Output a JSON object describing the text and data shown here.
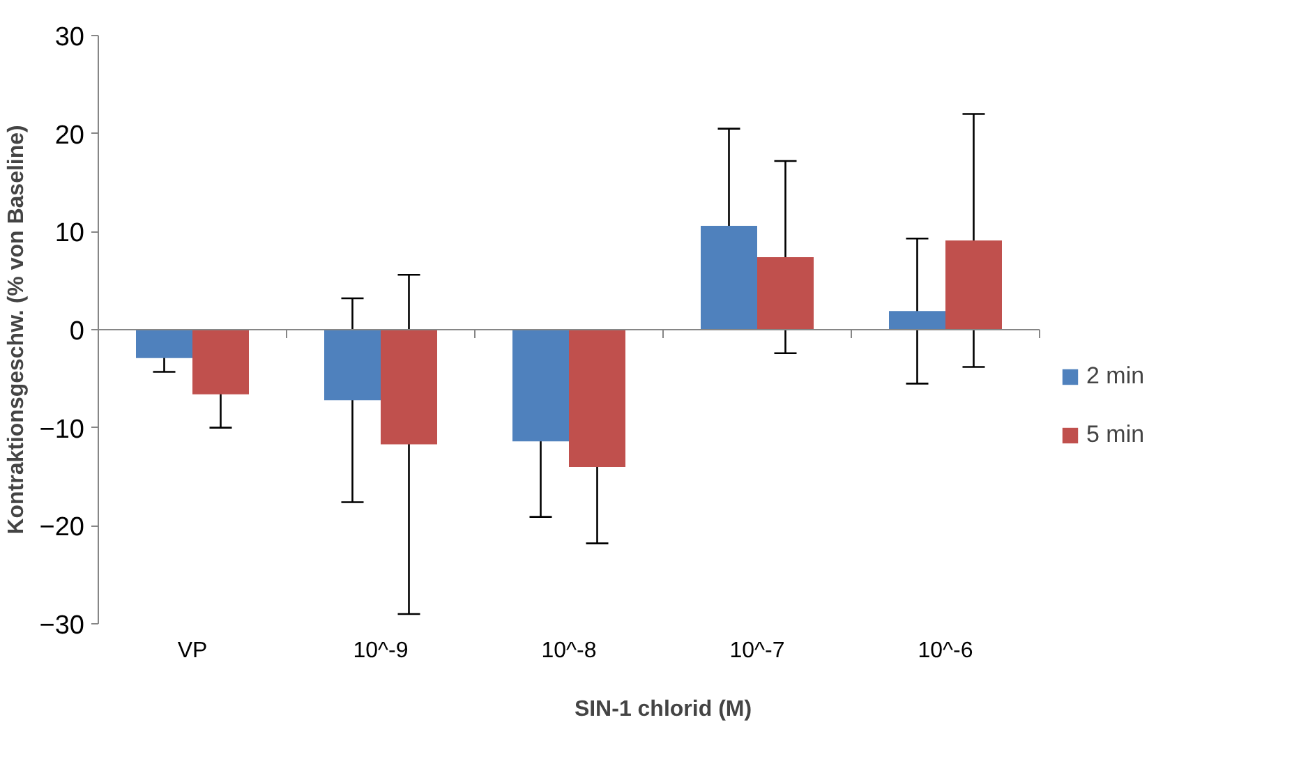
{
  "chart_data": {
    "type": "bar",
    "xlabel": "SIN-1 chlorid (M)",
    "ylabel": "Kontraktionsgeschw. (% von Baseline)",
    "categories": [
      "VP",
      "10^-9",
      "10^-8",
      "10^-7",
      "10^-6"
    ],
    "series": [
      {
        "name": "2 min",
        "color": "#4f81bd",
        "values": [
          -2.9,
          -7.2,
          -11.4,
          10.6,
          1.9
        ],
        "errors": [
          1.4,
          10.4,
          7.7,
          9.9,
          7.4
        ]
      },
      {
        "name": "5 min",
        "color": "#c0504d",
        "values": [
          -6.6,
          -11.7,
          -14.0,
          7.4,
          9.1
        ],
        "errors": [
          3.4,
          17.3,
          7.8,
          9.8,
          12.9
        ]
      }
    ],
    "ylim": [
      -30,
      30
    ],
    "yticks": [
      -30,
      -20,
      -10,
      0,
      10,
      20,
      30
    ],
    "legend": "right"
  }
}
